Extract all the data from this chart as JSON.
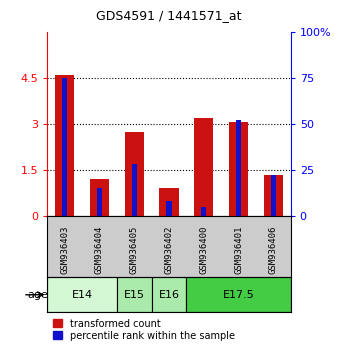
{
  "title": "GDS4591 / 1441571_at",
  "samples": [
    "GSM936403",
    "GSM936404",
    "GSM936405",
    "GSM936402",
    "GSM936400",
    "GSM936401",
    "GSM936406"
  ],
  "transformed_count": [
    4.6,
    1.2,
    2.75,
    0.9,
    3.2,
    3.05,
    1.35
  ],
  "percentile_rank": [
    75,
    15,
    28,
    8,
    5,
    52,
    22
  ],
  "age_groups": [
    {
      "label": "E14",
      "span": [
        0,
        2
      ],
      "color": "#d4f7d4"
    },
    {
      "label": "E15",
      "span": [
        2,
        3
      ],
      "color": "#aaeaaa"
    },
    {
      "label": "E16",
      "span": [
        3,
        4
      ],
      "color": "#aaeaaa"
    },
    {
      "label": "E17.5",
      "span": [
        4,
        7
      ],
      "color": "#44cc44"
    }
  ],
  "ylim_left": [
    0,
    6
  ],
  "ylim_right": [
    0,
    100
  ],
  "yticks_left": [
    0,
    1.5,
    3.0,
    4.5
  ],
  "ytick_labels_left": [
    "0",
    "1.5",
    "3",
    "4.5"
  ],
  "yticks_right": [
    0,
    25,
    50,
    75,
    100
  ],
  "ytick_labels_right": [
    "0",
    "25",
    "50",
    "75",
    "100%"
  ],
  "bar_color_red": "#cc1111",
  "bar_color_blue": "#1111cc",
  "red_bar_width": 0.55,
  "blue_bar_width": 0.15,
  "grid_color": "black",
  "background_color": "#ffffff",
  "label_area_color": "#cccccc",
  "age_label": "age"
}
